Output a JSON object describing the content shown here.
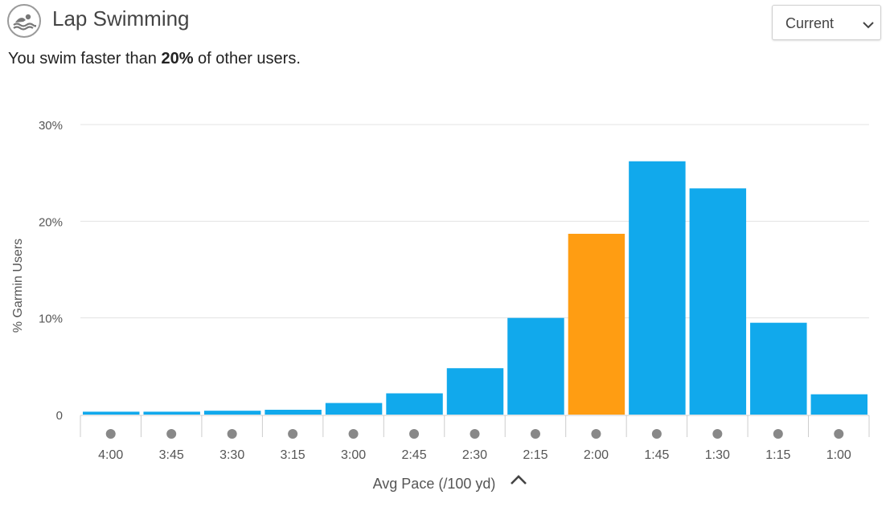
{
  "header": {
    "title": "Lap Swimming",
    "icon": "swimmer-icon",
    "select": {
      "value": "Current",
      "icon": "chevron-down-icon"
    }
  },
  "summary": {
    "prefix": "You swim faster than ",
    "percent": "20%",
    "suffix": " of other users."
  },
  "chart_data": {
    "type": "bar",
    "ylabel": "% Garmin Users",
    "xlabel": "Avg Pace (/100 yd)",
    "xlabel_icon": "chevron-up-icon",
    "y_ticks": [
      "0",
      "10%",
      "20%",
      "30%"
    ],
    "ylim": [
      0,
      30
    ],
    "grid": true,
    "categories": [
      "4:00",
      "3:45",
      "3:30",
      "3:15",
      "3:00",
      "2:45",
      "2:30",
      "2:15",
      "2:00",
      "1:45",
      "1:30",
      "1:15",
      "1:00"
    ],
    "values": [
      0.3,
      0.3,
      0.4,
      0.5,
      1.2,
      2.2,
      4.8,
      10.0,
      18.7,
      26.2,
      23.4,
      9.5,
      2.1
    ],
    "highlight_index": 8,
    "colors": {
      "bar": "#11a9ec",
      "highlight": "#ff9d12",
      "grid": "#e3e3e3",
      "axis": "#cccccc",
      "marker": "#888888"
    }
  }
}
